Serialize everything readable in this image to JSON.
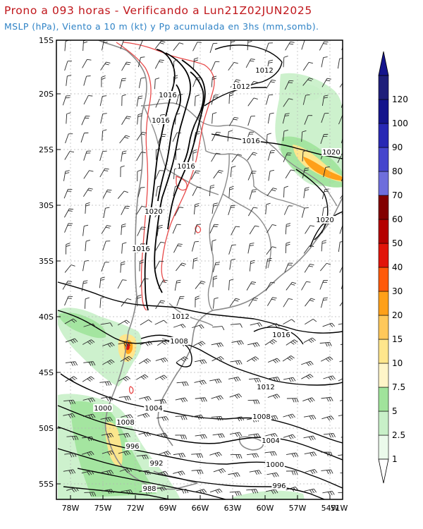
{
  "title": "Prono a 093 horas - Verificando a Lun21Z02JUN2025",
  "subtitle": "MSLP (hPa), Viento a 10 m (kt) y Pp acumulada en 3hs (mm,somb).",
  "lat_labels": [
    "15S",
    "20S",
    "25S",
    "30S",
    "35S",
    "40S",
    "45S",
    "50S",
    "55S"
  ],
  "lon_labels": [
    "78W",
    "75W",
    "72W",
    "69W",
    "66W",
    "63W",
    "60W",
    "57W",
    "54W",
    "51W"
  ],
  "colorbar": {
    "levels": [
      "1",
      "2.5",
      "5",
      "7.5",
      "10",
      "15",
      "20",
      "30",
      "40",
      "50",
      "60",
      "70",
      "80",
      "90",
      "100",
      "120"
    ],
    "colors": [
      "#ffffff",
      "#ebfaeb",
      "#c8f0c8",
      "#a0e39b",
      "#fff5c8",
      "#ffe68c",
      "#ffc85a",
      "#ffa019",
      "#ff5a0a",
      "#e1140a",
      "#b40000",
      "#820000",
      "#6e6edc",
      "#4646cd",
      "#2828b4",
      "#14148c",
      "#1e1e7a"
    ]
  },
  "isobar_labels": [
    {
      "text": "1012"
    },
    {
      "text": "1012"
    },
    {
      "text": "1016"
    },
    {
      "text": "1016"
    },
    {
      "text": "1016"
    },
    {
      "text": "1016"
    },
    {
      "text": "1020"
    },
    {
      "text": "1020"
    },
    {
      "text": "1016"
    },
    {
      "text": "1020"
    },
    {
      "text": "1012"
    },
    {
      "text": "1008"
    },
    {
      "text": "1016"
    },
    {
      "text": "1012"
    },
    {
      "text": "1008"
    },
    {
      "text": "1004"
    },
    {
      "text": "1008"
    },
    {
      "text": "1004"
    },
    {
      "text": "1000"
    },
    {
      "text": "996"
    },
    {
      "text": "992"
    },
    {
      "text": "988"
    },
    {
      "text": "1000"
    },
    {
      "text": "996"
    }
  ],
  "colors": {
    "title": "#c0161b",
    "subtitle": "#2f83c6",
    "isobar": "#000000",
    "coast": "#8a8a8a",
    "topo": "#e84a4a"
  }
}
